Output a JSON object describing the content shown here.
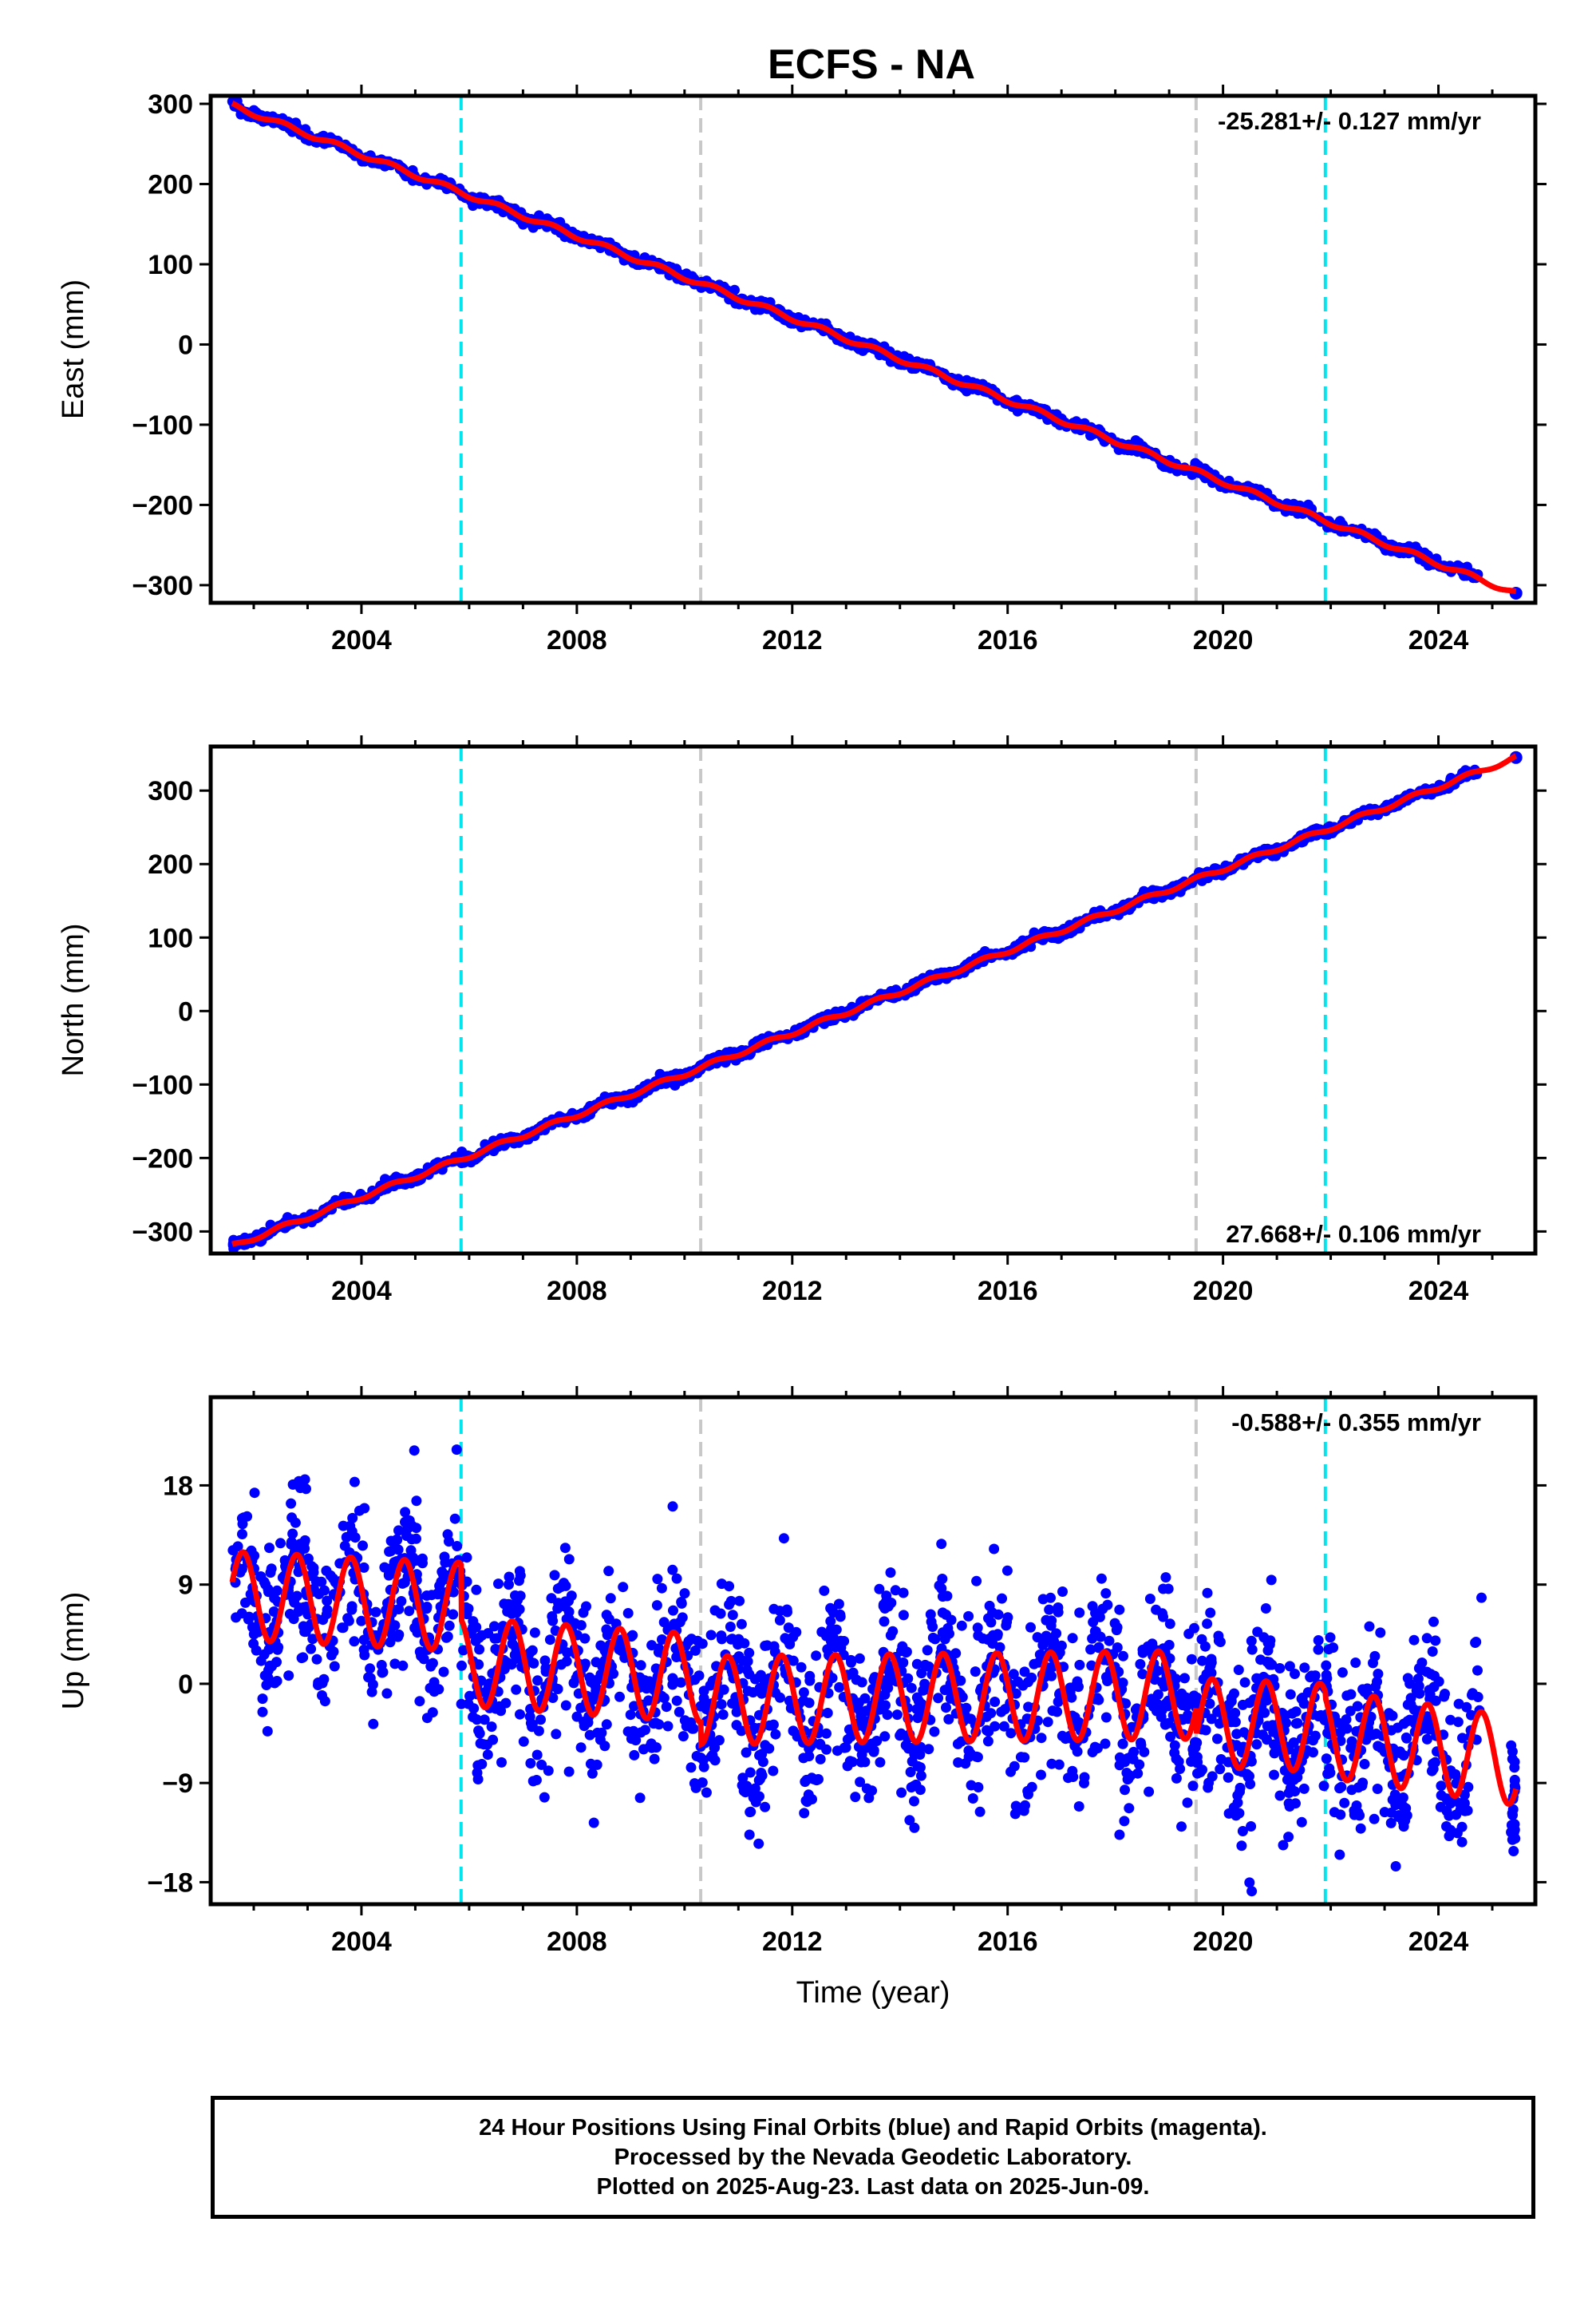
{
  "title": "ECFS - NA",
  "footer": {
    "lines": [
      "24 Hour Positions Using Final Orbits (blue) and Rapid Orbits (magenta).",
      "Processed by the Nevada Geodetic Laboratory.",
      "Plotted on 2025-Aug-23. Last data on 2025-Jun-09."
    ]
  },
  "chart_data": [
    {
      "type": "scatter",
      "component": "east",
      "ylabel": "East (mm)",
      "xlabel": "",
      "xlim": [
        2001.2,
        2025.8
      ],
      "ylim": [
        -322,
        310
      ],
      "yticks": [
        300,
        200,
        100,
        0,
        -100,
        -200,
        -300
      ],
      "yticklabels": [
        "300",
        "200",
        "100",
        "0",
        "−100",
        "−200",
        "−300"
      ],
      "xticks": [
        2004,
        2008,
        2012,
        2016,
        2020,
        2024
      ],
      "xticklabels": [
        "2004",
        "2008",
        "2012",
        "2016",
        "2020",
        "2024"
      ],
      "rate_label": "-25.281+/- 0.127 mm/yr",
      "rate_position": "top-right",
      "start": [
        2001.6,
        298
      ],
      "end": [
        2025.44,
        -310
      ],
      "data_span": [
        2001.6,
        2024.75
      ],
      "seasonal_amplitude": 3,
      "noise": 3,
      "fit_color": "#ff0000",
      "point_color": "#0000ff",
      "last_point": [
        2025.44,
        -310
      ]
    },
    {
      "type": "scatter",
      "component": "north",
      "ylabel": "North (mm)",
      "xlabel": "",
      "xlim": [
        2001.2,
        2025.8
      ],
      "ylim": [
        -330,
        360
      ],
      "yticks": [
        300,
        200,
        100,
        0,
        -100,
        -200,
        -300
      ],
      "yticklabels": [
        "300",
        "200",
        "100",
        "0",
        "−100",
        "−200",
        "−300"
      ],
      "xticks": [
        2004,
        2008,
        2012,
        2016,
        2020,
        2024
      ],
      "xticklabels": [
        "2004",
        "2008",
        "2012",
        "2016",
        "2020",
        "2024"
      ],
      "rate_label": "27.668+/- 0.106 mm/yr",
      "rate_position": "bottom-right",
      "start": [
        2001.6,
        -320
      ],
      "end": [
        2025.44,
        345
      ],
      "data_span": [
        2001.6,
        2024.75
      ],
      "seasonal_amplitude": 3,
      "noise": 3,
      "fit_color": "#ff0000",
      "point_color": "#0000ff",
      "last_point": [
        2025.44,
        345
      ]
    },
    {
      "type": "scatter",
      "component": "up",
      "ylabel": "Up (mm)",
      "xlabel": "Time (year)",
      "xlim": [
        2001.2,
        2025.8
      ],
      "ylim": [
        -20,
        26
      ],
      "yticks": [
        18,
        9,
        0,
        -9,
        -18
      ],
      "yticklabels": [
        "18",
        "9",
        "0",
        "−9",
        "−18"
      ],
      "xticks": [
        2004,
        2008,
        2012,
        2016,
        2020,
        2024
      ],
      "xticklabels": [
        "2004",
        "2008",
        "2012",
        "2016",
        "2020",
        "2024"
      ],
      "rate_label": "-0.588+/- 0.355 mm/yr",
      "rate_position": "top-right",
      "segments": [
        {
          "from": 2001.6,
          "to": 2005.85,
          "offset_start": 8,
          "offset_end": 7
        },
        {
          "from": 2005.85,
          "to": 2010.3,
          "offset_start": 2,
          "offset_end": 0.5
        },
        {
          "from": 2010.3,
          "to": 2019.5,
          "offset_start": -1.5,
          "offset_end": -1
        },
        {
          "from": 2019.5,
          "to": 2021.9,
          "offset_start": -3.5,
          "offset_end": -4
        },
        {
          "from": 2021.9,
          "to": 2025.44,
          "offset_start": -4.5,
          "offset_end": -7
        }
      ],
      "seasonal_amplitude": 4,
      "noise": 3.6,
      "fit_color": "#ff0000",
      "point_color": "#0000ff"
    }
  ],
  "offsets": [
    {
      "year": 2005.85,
      "color": "#00e5ee"
    },
    {
      "year": 2010.3,
      "color": "#c8c8c8"
    },
    {
      "year": 2019.5,
      "color": "#c8c8c8"
    },
    {
      "year": 2021.9,
      "color": "#00e5ee"
    }
  ]
}
